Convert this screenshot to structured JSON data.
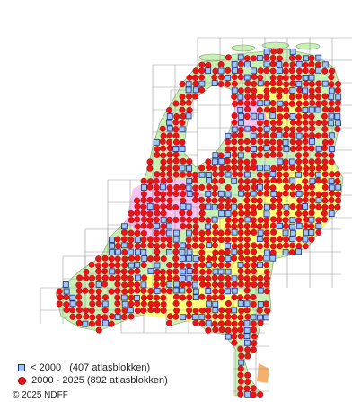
{
  "legend": {
    "old": "< 2000   (407 atlasblokken)",
    "recent": "2000 - 2025 (892 atlasblokken)"
  },
  "copyright": "© 2025 NDFF",
  "colors": {
    "land_green": "#c9f0b4",
    "land_yellow": "#ffff80",
    "land_pink": "#f4c3f0",
    "land_orange": "#f5b06a",
    "grid": "#9a9a9a",
    "record_recent": "#e8141a",
    "record_old_fill": "#9fc7ec",
    "record_old_border": "#1d2a8f"
  },
  "icons": {
    "old": "square-marker-icon",
    "recent": "red-dot-marker-icon"
  }
}
